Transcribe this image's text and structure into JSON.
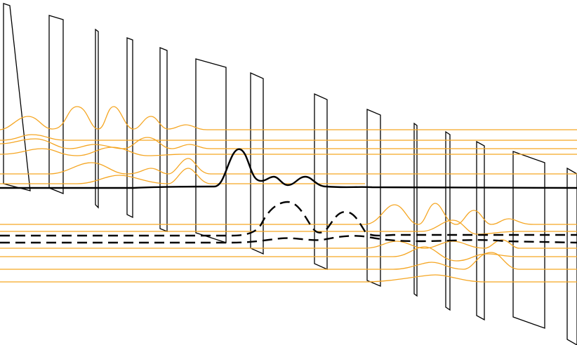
{
  "colors": {
    "wall": "#000000",
    "orange_mode": "#f5a623",
    "main_mode": "#000000",
    "background": "#ffffff"
  },
  "legend": {
    "orange_line": "orange_mode",
    "solid_line": "main_mode",
    "dashed_line": "main_mode"
  }
}
